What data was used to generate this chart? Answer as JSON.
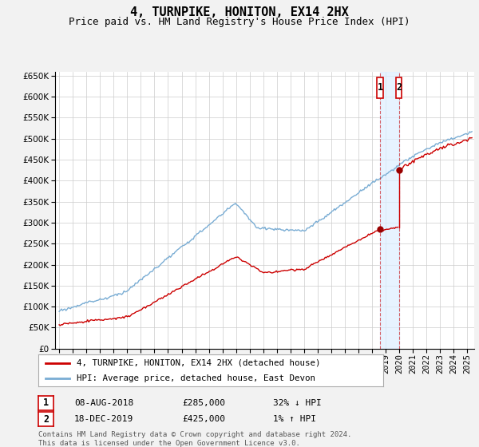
{
  "title": "4, TURNPIKE, HONITON, EX14 2HX",
  "subtitle": "Price paid vs. HM Land Registry's House Price Index (HPI)",
  "ylim": [
    0,
    660000
  ],
  "yticks": [
    0,
    50000,
    100000,
    150000,
    200000,
    250000,
    300000,
    350000,
    400000,
    450000,
    500000,
    550000,
    600000,
    650000
  ],
  "xlim_start": 1994.7,
  "xlim_end": 2025.5,
  "grid_color": "#cccccc",
  "bg_color": "#f2f2f2",
  "plot_bg_color": "#ffffff",
  "hpi_color": "#7aadd4",
  "price_color": "#cc0000",
  "span_color": "#ddeeff",
  "transaction1_date": 2018.58,
  "transaction1_price": 285000,
  "transaction2_date": 2019.96,
  "transaction2_price": 425000,
  "legend_label1": "4, TURNPIKE, HONITON, EX14 2HX (detached house)",
  "legend_label2": "HPI: Average price, detached house, East Devon",
  "table_row1": [
    "1",
    "08-AUG-2018",
    "£285,000",
    "32% ↓ HPI"
  ],
  "table_row2": [
    "2",
    "18-DEC-2019",
    "£425,000",
    "1% ↑ HPI"
  ],
  "footer": "Contains HM Land Registry data © Crown copyright and database right 2024.\nThis data is licensed under the Open Government Licence v3.0.",
  "title_fontsize": 11,
  "subtitle_fontsize": 9,
  "tick_fontsize": 7.5
}
